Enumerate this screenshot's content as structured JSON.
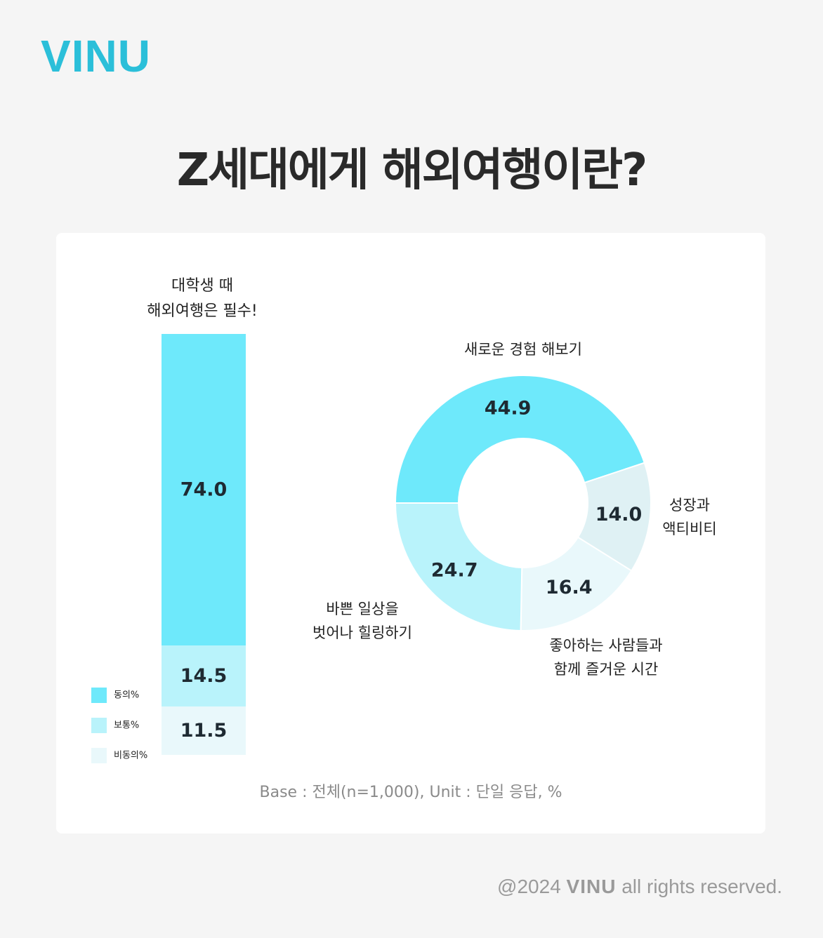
{
  "brand": {
    "logo": "VINU",
    "color": "#2bbfd9"
  },
  "title": "Z세대에게 해외여행이란?",
  "footer": {
    "prefix": "@2024",
    "logo": "VINU",
    "suffix": "all rights reserved."
  },
  "colors": {
    "agree": "#6ee9fb",
    "neutral": "#b9f3fb",
    "disagree": "#e9f8fb",
    "donut4": "#dff1f4"
  },
  "chart_data": [
    {
      "type": "bar",
      "stacked": true,
      "title_lines": [
        "대학생 때",
        "해외여행은 필수!"
      ],
      "series": [
        {
          "name": "동의%",
          "value": 74.0,
          "label": "74.0",
          "color": "#6ee9fb"
        },
        {
          "name": "보통%",
          "value": 14.5,
          "label": "14.5",
          "color": "#b9f3fb"
        },
        {
          "name": "비동의%",
          "value": 11.5,
          "label": "11.5",
          "color": "#e9f8fb"
        }
      ],
      "legend": [
        "동의%",
        "보통%",
        "비동의%"
      ],
      "legend_position": "bottom-left"
    },
    {
      "type": "pie",
      "donut": true,
      "slices": [
        {
          "label_lines": [
            "새로운 경험 해보기"
          ],
          "value": 44.9,
          "value_label": "44.9",
          "color": "#6ee9fb"
        },
        {
          "label_lines": [
            "성장과",
            "액티비티"
          ],
          "value": 14.0,
          "value_label": "14.0",
          "color": "#dff1f4"
        },
        {
          "label_lines": [
            "좋아하는 사람들과",
            "함께 즐거운 시간"
          ],
          "value": 16.4,
          "value_label": "16.4",
          "color": "#e9f8fb"
        },
        {
          "label_lines": [
            "바쁜 일상을",
            "벗어나 힐링하기"
          ],
          "value": 24.7,
          "value_label": "24.7",
          "color": "#b9f3fb"
        }
      ]
    }
  ],
  "base_note": "Base : 전체(n=1,000), Unit : 단일 응답, %"
}
